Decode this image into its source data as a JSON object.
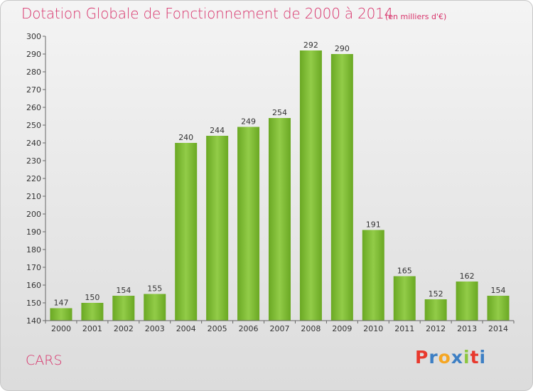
{
  "chart_data": {
    "type": "bar",
    "title": "Dotation Globale de Fonctionnement de 2000 à 2014",
    "unit_label": "(en milliers d'€)",
    "categories": [
      "2000",
      "2001",
      "2002",
      "2003",
      "2004",
      "2005",
      "2006",
      "2007",
      "2008",
      "2009",
      "2010",
      "2011",
      "2012",
      "2013",
      "2014"
    ],
    "values": [
      147,
      150,
      154,
      155,
      240,
      244,
      249,
      254,
      292,
      290,
      191,
      165,
      152,
      162,
      154
    ],
    "ylim": [
      140,
      300
    ],
    "yticks": [
      140,
      150,
      160,
      170,
      180,
      190,
      200,
      210,
      220,
      230,
      240,
      250,
      260,
      270,
      280,
      290,
      300
    ],
    "grid": false,
    "bar_color": "#7dbb32"
  },
  "footer": {
    "commune": "CARS",
    "brand": [
      "P",
      "r",
      "o",
      "x",
      "i",
      "t",
      "i"
    ],
    "brand_colors": [
      "#e8392d",
      "#3d7fc4",
      "#f5a623",
      "#3d7fc4",
      "#8cc63f",
      "#e8392d",
      "#3d7fc4"
    ]
  }
}
